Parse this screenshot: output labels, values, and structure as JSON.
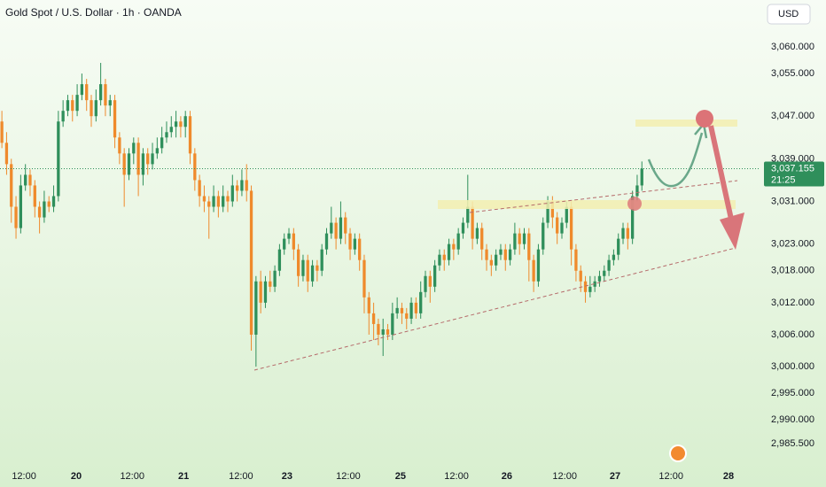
{
  "chart_data": {
    "type": "candlestick",
    "title": "Gold Spot / U.S. Dollar · 1h · OANDA",
    "currency": "USD",
    "up_color": "#2f8f5b",
    "down_color": "#ef8a2c",
    "ylim": [
      2982.4,
      3068.8
    ],
    "yticks": [
      {
        "value": 3060,
        "label": "3,060.000"
      },
      {
        "value": 3055,
        "label": "3,055.000"
      },
      {
        "value": 3047,
        "label": "3,047.000"
      },
      {
        "value": 3039,
        "label": "3,039.000"
      },
      {
        "value": 3031,
        "label": "3,031.000"
      },
      {
        "value": 3023,
        "label": "3,023.000"
      },
      {
        "value": 3018,
        "label": "3,018.000"
      },
      {
        "value": 3012,
        "label": "3,012.000"
      },
      {
        "value": 3006,
        "label": "3,006.000"
      },
      {
        "value": 3000,
        "label": "3,000.000"
      },
      {
        "value": 2995,
        "label": "2,995.000"
      },
      {
        "value": 2990,
        "label": "2,990.000"
      },
      {
        "value": 2985.5,
        "label": "2,985.500"
      }
    ],
    "xlim": [
      -0.4,
      161
    ],
    "xticks": [
      {
        "value": 4.7,
        "label": "12:00"
      },
      {
        "value": 15.8,
        "label": "20"
      },
      {
        "value": 27.7,
        "label": "12:00"
      },
      {
        "value": 38.6,
        "label": "21"
      },
      {
        "value": 50.8,
        "label": "12:00"
      },
      {
        "value": 60.6,
        "label": "23"
      },
      {
        "value": 73.6,
        "label": "12:00"
      },
      {
        "value": 84.7,
        "label": "25"
      },
      {
        "value": 96.6,
        "label": "12:00"
      },
      {
        "value": 107.3,
        "label": "26"
      },
      {
        "value": 119.6,
        "label": "12:00"
      },
      {
        "value": 130.3,
        "label": "27"
      },
      {
        "value": 142.2,
        "label": "12:00"
      },
      {
        "value": 154.4,
        "label": "28"
      }
    ],
    "grid": false,
    "last_price": {
      "value": 3037.155,
      "label": "3,037.155"
    },
    "countdown": "21:25",
    "candles": [
      [
        3046,
        3048,
        3041,
        3042
      ],
      [
        3042,
        3044,
        3036,
        3038
      ],
      [
        3038,
        3039,
        3027,
        3030
      ],
      [
        3030,
        3032,
        3024,
        3026
      ],
      [
        3026,
        3036,
        3025,
        3034
      ],
      [
        3034,
        3038,
        3033,
        3036
      ],
      [
        3036,
        3037,
        3032,
        3034
      ],
      [
        3034,
        3035,
        3028,
        3030
      ],
      [
        3030,
        3031,
        3025,
        3028
      ],
      [
        3028,
        3033,
        3027,
        3031
      ],
      [
        3031,
        3032,
        3029,
        3030
      ],
      [
        3030,
        3034,
        3029,
        3032
      ],
      [
        3032,
        3048,
        3031,
        3046
      ],
      [
        3046,
        3050,
        3045,
        3048
      ],
      [
        3048,
        3051,
        3047,
        3050
      ],
      [
        3050,
        3051,
        3046,
        3048
      ],
      [
        3048,
        3053,
        3047,
        3051
      ],
      [
        3051,
        3055,
        3050,
        3053
      ],
      [
        3053,
        3054,
        3048,
        3050
      ],
      [
        3050,
        3051,
        3045,
        3047
      ],
      [
        3047,
        3052,
        3046,
        3050
      ],
      [
        3050,
        3057,
        3049,
        3053
      ],
      [
        3053,
        3054,
        3047,
        3049
      ],
      [
        3049,
        3051,
        3047,
        3050
      ],
      [
        3050,
        3051,
        3041,
        3043
      ],
      [
        3043,
        3044,
        3038,
        3040
      ],
      [
        3040,
        3041,
        3030,
        3036
      ],
      [
        3036,
        3041,
        3035,
        3040
      ],
      [
        3040,
        3043,
        3038,
        3042
      ],
      [
        3042,
        3043,
        3032,
        3036
      ],
      [
        3036,
        3041,
        3034,
        3040
      ],
      [
        3040,
        3041,
        3036,
        3038
      ],
      [
        3038,
        3042,
        3037,
        3040
      ],
      [
        3040,
        3043,
        3039,
        3041
      ],
      [
        3041,
        3045,
        3040,
        3043
      ],
      [
        3043,
        3046,
        3042,
        3044
      ],
      [
        3044,
        3047,
        3043,
        3045
      ],
      [
        3045,
        3048,
        3043,
        3046
      ],
      [
        3046,
        3047,
        3043,
        3045
      ],
      [
        3045,
        3048,
        3043,
        3047
      ],
      [
        3047,
        3048,
        3038,
        3040
      ],
      [
        3040,
        3041,
        3033,
        3035
      ],
      [
        3035,
        3036,
        3030,
        3032
      ],
      [
        3032,
        3034,
        3029,
        3031
      ],
      [
        3031,
        3032,
        3024,
        3030
      ],
      [
        3030,
        3034,
        3029,
        3032
      ],
      [
        3032,
        3033,
        3028,
        3030
      ],
      [
        3030,
        3034,
        3029,
        3032
      ],
      [
        3032,
        3033,
        3029,
        3031
      ],
      [
        3031,
        3036,
        3030,
        3034
      ],
      [
        3034,
        3035,
        3031,
        3033
      ],
      [
        3033,
        3037,
        3032,
        3035
      ],
      [
        3035,
        3038,
        3031,
        3033
      ],
      [
        3033,
        3034,
        3003,
        3006
      ],
      [
        3006,
        3017,
        3000,
        3016
      ],
      [
        3016,
        3018,
        3010,
        3012
      ],
      [
        3012,
        3017,
        3011,
        3016
      ],
      [
        3016,
        3018,
        3014,
        3015
      ],
      [
        3015,
        3019,
        3014,
        3018
      ],
      [
        3018,
        3023,
        3017,
        3022
      ],
      [
        3022,
        3025,
        3021,
        3024
      ],
      [
        3024,
        3026,
        3023,
        3025
      ],
      [
        3025,
        3026,
        3020,
        3022
      ],
      [
        3022,
        3023,
        3015,
        3017
      ],
      [
        3017,
        3021,
        3016,
        3020
      ],
      [
        3020,
        3021,
        3014,
        3016
      ],
      [
        3016,
        3020,
        3015,
        3019
      ],
      [
        3019,
        3020,
        3016,
        3018
      ],
      [
        3018,
        3023,
        3017,
        3022
      ],
      [
        3022,
        3026,
        3021,
        3025
      ],
      [
        3025,
        3030,
        3024,
        3027
      ],
      [
        3027,
        3028,
        3022,
        3024
      ],
      [
        3024,
        3031,
        3023,
        3028
      ],
      [
        3028,
        3029,
        3023,
        3025
      ],
      [
        3025,
        3026,
        3020,
        3022
      ],
      [
        3022,
        3025,
        3021,
        3024
      ],
      [
        3024,
        3025,
        3018,
        3020
      ],
      [
        3020,
        3021,
        3010,
        3013
      ],
      [
        3013,
        3014,
        3006,
        3010
      ],
      [
        3010,
        3012,
        3005,
        3008
      ],
      [
        3008,
        3009,
        3004,
        3006
      ],
      [
        3006,
        3009,
        3002,
        3007
      ],
      [
        3007,
        3008,
        3005,
        3006
      ],
      [
        3006,
        3012,
        3005,
        3010
      ],
      [
        3010,
        3013,
        3009,
        3011
      ],
      [
        3011,
        3012,
        3008,
        3010
      ],
      [
        3010,
        3011,
        3007,
        3009
      ],
      [
        3009,
        3013,
        3008,
        3012
      ],
      [
        3012,
        3013,
        3009,
        3010
      ],
      [
        3010,
        3016,
        3009,
        3014
      ],
      [
        3014,
        3018,
        3013,
        3017
      ],
      [
        3017,
        3018,
        3012,
        3015
      ],
      [
        3015,
        3020,
        3014,
        3019
      ],
      [
        3019,
        3022,
        3018,
        3021
      ],
      [
        3021,
        3022,
        3018,
        3020
      ],
      [
        3020,
        3024,
        3019,
        3023
      ],
      [
        3023,
        3024,
        3020,
        3022
      ],
      [
        3022,
        3026,
        3021,
        3025
      ],
      [
        3025,
        3028,
        3024,
        3027
      ],
      [
        3027,
        3036,
        3026,
        3030
      ],
      [
        3030,
        3031,
        3022,
        3024
      ],
      [
        3024,
        3027,
        3023,
        3026
      ],
      [
        3026,
        3027,
        3020,
        3022
      ],
      [
        3022,
        3023,
        3018,
        3020
      ],
      [
        3020,
        3021,
        3017,
        3019
      ],
      [
        3019,
        3022,
        3018,
        3021
      ],
      [
        3021,
        3023,
        3020,
        3022
      ],
      [
        3022,
        3023,
        3018,
        3020
      ],
      [
        3020,
        3023,
        3019,
        3022
      ],
      [
        3022,
        3027,
        3021,
        3025
      ],
      [
        3025,
        3026,
        3021,
        3023
      ],
      [
        3023,
        3026,
        3022,
        3025
      ],
      [
        3025,
        3026,
        3016,
        3020
      ],
      [
        3020,
        3021,
        3014,
        3016
      ],
      [
        3016,
        3023,
        3015,
        3022
      ],
      [
        3022,
        3028,
        3021,
        3027
      ],
      [
        3027,
        3032,
        3026,
        3031
      ],
      [
        3031,
        3032,
        3026,
        3028
      ],
      [
        3028,
        3029,
        3023,
        3025
      ],
      [
        3025,
        3028,
        3024,
        3027
      ],
      [
        3027,
        3031,
        3026,
        3030
      ],
      [
        3030,
        3031,
        3019,
        3022
      ],
      [
        3022,
        3023,
        3016,
        3018
      ],
      [
        3018,
        3019,
        3014,
        3016
      ],
      [
        3016,
        3017,
        3012,
        3014
      ],
      [
        3014,
        3017,
        3013,
        3015
      ],
      [
        3015,
        3017,
        3014,
        3016
      ],
      [
        3016,
        3018,
        3015,
        3017
      ],
      [
        3017,
        3019,
        3016,
        3018
      ],
      [
        3018,
        3021,
        3017,
        3020
      ],
      [
        3020,
        3022,
        3019,
        3021
      ],
      [
        3021,
        3025,
        3020,
        3024
      ],
      [
        3024,
        3027,
        3023,
        3026
      ],
      [
        3026,
        3027,
        3022,
        3024
      ],
      [
        3024,
        3033,
        3023,
        3032
      ],
      [
        3032,
        3036,
        3031,
        3034
      ],
      [
        3034,
        3038.5,
        3033,
        3037.155
      ]
    ]
  }
}
